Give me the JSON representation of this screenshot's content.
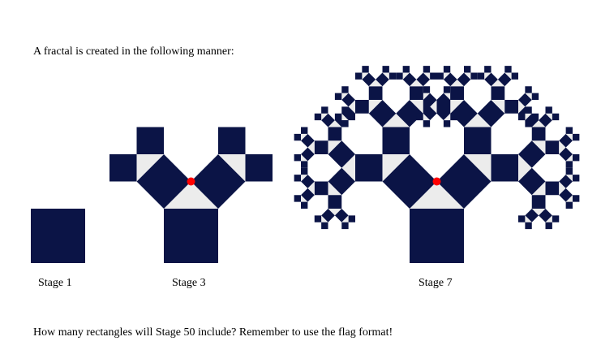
{
  "intro_text": "A fractal is created in the following manner:",
  "question_text": "How many rectangles will Stage 50 include? Remember to use the flag format!",
  "stages": [
    {
      "label": "Stage 1",
      "depth": 1
    },
    {
      "label": "Stage 3",
      "depth": 3
    },
    {
      "label": "Stage 7",
      "depth": 7
    }
  ],
  "colors": {
    "square": "#0b1446",
    "triangle": "#ececec",
    "marker": "#ff0000"
  }
}
